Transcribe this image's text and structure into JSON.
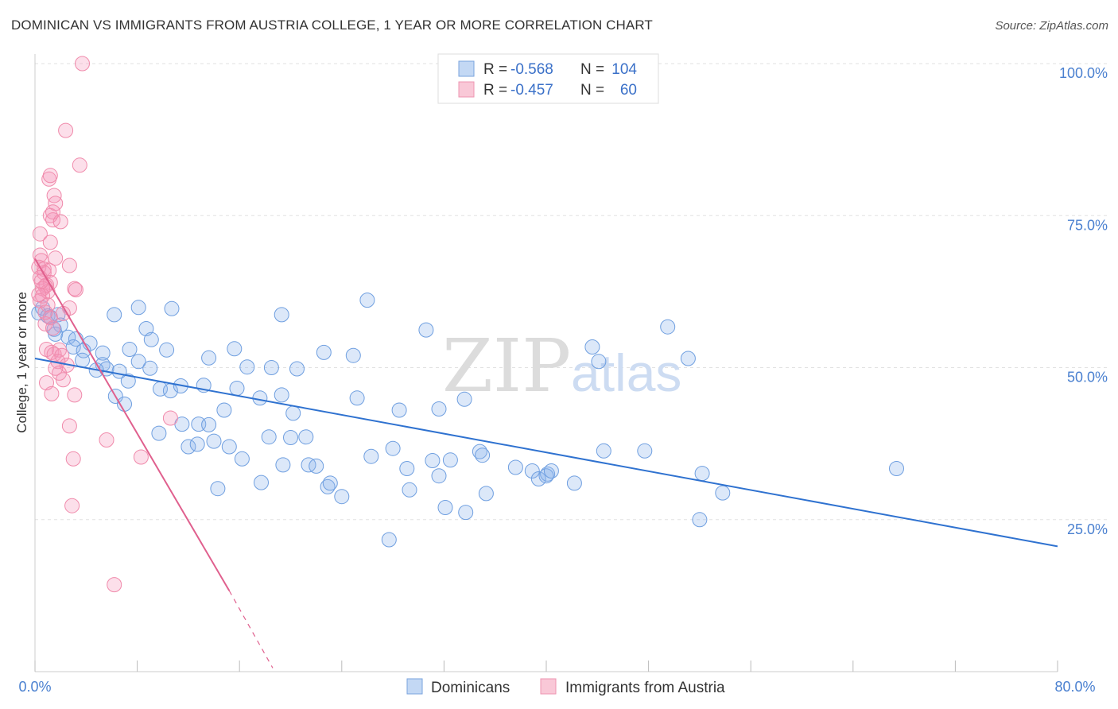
{
  "header": {
    "title": "DOMINICAN VS IMMIGRANTS FROM AUSTRIA COLLEGE, 1 YEAR OR MORE CORRELATION CHART",
    "source": "Source: ZipAtlas.com"
  },
  "watermark": {
    "zip": "ZIP",
    "atlas": "atlas"
  },
  "legend": {
    "rows": [
      {
        "r_label": "R =",
        "r_value": "-0.568",
        "n_label": "N =",
        "n_value": "104"
      },
      {
        "r_label": "R =",
        "r_value": "-0.457",
        "n_label": "N =",
        "n_value": "60"
      }
    ]
  },
  "bottom_legend": {
    "items": [
      "Dominicans",
      "Immigrants from Austria"
    ]
  },
  "chart_data": {
    "type": "scatter",
    "title": "DOMINICAN VS IMMIGRANTS FROM AUSTRIA COLLEGE, 1 YEAR OR MORE CORRELATION CHART",
    "xlabel": "",
    "ylabel": "College, 1 year or more",
    "xlim": [
      0,
      80
    ],
    "ylim": [
      0,
      102
    ],
    "x_tick_labels": [
      "0.0%",
      "80.0%"
    ],
    "y_ticks": [
      25,
      50,
      75,
      100
    ],
    "y_tick_labels": [
      "25.0%",
      "50.0%",
      "75.0%",
      "100.0%"
    ],
    "grid": true,
    "series": [
      {
        "name": "Dominicans",
        "color": "#6f9fe0",
        "line_color": "#2f72d0",
        "trend": {
          "x0": 0,
          "y0": 51.5,
          "x1": 80,
          "y1": 20.6
        },
        "points": [
          [
            0.3,
            59
          ],
          [
            0.6,
            59.8
          ],
          [
            1.0,
            58.5
          ],
          [
            1.2,
            58.3
          ],
          [
            1.8,
            58.7
          ],
          [
            2.0,
            57
          ],
          [
            1.6,
            55.5
          ],
          [
            2.6,
            55
          ],
          [
            3.2,
            54.7
          ],
          [
            3.0,
            53.4
          ],
          [
            4.3,
            54
          ],
          [
            3.8,
            52.8
          ],
          [
            5.3,
            52.4
          ],
          [
            3.7,
            51.2
          ],
          [
            5.3,
            50.5
          ],
          [
            5.6,
            49.8
          ],
          [
            4.8,
            49.6
          ],
          [
            6.6,
            49.4
          ],
          [
            7.4,
            53
          ],
          [
            9.0,
            49.9
          ],
          [
            7.3,
            47.8
          ],
          [
            9.8,
            46.5
          ],
          [
            6.3,
            45.3
          ],
          [
            7.0,
            44
          ],
          [
            6.2,
            58.7
          ],
          [
            8.1,
            59.9
          ],
          [
            10.7,
            59.7
          ],
          [
            8.7,
            56.4
          ],
          [
            9.1,
            54.6
          ],
          [
            10.3,
            52.9
          ],
          [
            8.1,
            51
          ],
          [
            10.6,
            46.2
          ],
          [
            11.4,
            47
          ],
          [
            13.6,
            51.6
          ],
          [
            13.2,
            47.1
          ],
          [
            15.6,
            53.1
          ],
          [
            15.8,
            46.6
          ],
          [
            16.6,
            50.1
          ],
          [
            17.6,
            45
          ],
          [
            18.5,
            50
          ],
          [
            19.3,
            45.5
          ],
          [
            20.2,
            42.5
          ],
          [
            20.5,
            49.8
          ],
          [
            22.6,
            52.5
          ],
          [
            24.9,
            52
          ],
          [
            25.2,
            45
          ],
          [
            26.0,
            61.1
          ],
          [
            28.5,
            43
          ],
          [
            30.6,
            56.2
          ],
          [
            31.6,
            43.2
          ],
          [
            33.6,
            44.8
          ],
          [
            19.3,
            58.7
          ],
          [
            14.8,
            43
          ],
          [
            9.7,
            39.2
          ],
          [
            11.5,
            40.7
          ],
          [
            12.0,
            37
          ],
          [
            12.7,
            37.4
          ],
          [
            12.8,
            40.7
          ],
          [
            13.6,
            40.6
          ],
          [
            14.0,
            37.9
          ],
          [
            15.2,
            37
          ],
          [
            16.2,
            35
          ],
          [
            18.3,
            38.6
          ],
          [
            19.4,
            34
          ],
          [
            17.7,
            31.1
          ],
          [
            20.0,
            38.5
          ],
          [
            21.2,
            38.6
          ],
          [
            21.4,
            34
          ],
          [
            22.0,
            33.8
          ],
          [
            14.3,
            30.1
          ],
          [
            22.9,
            30.4
          ],
          [
            23.1,
            31
          ],
          [
            24.0,
            28.8
          ],
          [
            26.3,
            35.4
          ],
          [
            28.0,
            36.7
          ],
          [
            29.1,
            33.4
          ],
          [
            29.3,
            29.9
          ],
          [
            31.1,
            34.7
          ],
          [
            31.6,
            32.2
          ],
          [
            32.1,
            27
          ],
          [
            32.5,
            34.8
          ],
          [
            33.7,
            26.2
          ],
          [
            34.8,
            36.2
          ],
          [
            35.0,
            35.6
          ],
          [
            35.3,
            29.3
          ],
          [
            37.6,
            33.6
          ],
          [
            38.9,
            33
          ],
          [
            39.4,
            31.7
          ],
          [
            40.1,
            32.5
          ],
          [
            40.0,
            32.2
          ],
          [
            40.4,
            33
          ],
          [
            42.2,
            31
          ],
          [
            43.6,
            53.4
          ],
          [
            44.1,
            51
          ],
          [
            44.5,
            36.3
          ],
          [
            47.7,
            36.3
          ],
          [
            49.5,
            56.7
          ],
          [
            51.1,
            51.5
          ],
          [
            52.2,
            32.6
          ],
          [
            52.0,
            25
          ],
          [
            53.8,
            29.4
          ],
          [
            67.4,
            33.4
          ],
          [
            27.7,
            21.7
          ],
          [
            1.5,
            56.3
          ]
        ]
      },
      {
        "name": "Immigrants from Austria",
        "color": "#f08aab",
        "line_color": "#e0608e",
        "trend": {
          "x0": 0,
          "y0": 67.9,
          "x1": 15.2,
          "y1": 13.3,
          "dash_x1": 18.6,
          "dash_y1": 0.6
        },
        "points": [
          [
            3.7,
            100
          ],
          [
            2.4,
            89
          ],
          [
            3.5,
            83.3
          ],
          [
            1.1,
            81
          ],
          [
            1.2,
            81.6
          ],
          [
            1.5,
            78.3
          ],
          [
            1.6,
            77
          ],
          [
            1.2,
            75
          ],
          [
            1.4,
            74.3
          ],
          [
            1.4,
            75.6
          ],
          [
            2.0,
            74
          ],
          [
            0.4,
            72
          ],
          [
            1.2,
            70.6
          ],
          [
            0.4,
            68.5
          ],
          [
            1.6,
            68
          ],
          [
            0.5,
            67.6
          ],
          [
            0.3,
            66.5
          ],
          [
            0.7,
            66.2
          ],
          [
            1.1,
            66
          ],
          [
            2.7,
            66.8
          ],
          [
            0.7,
            65.6
          ],
          [
            0.4,
            64.8
          ],
          [
            1.2,
            64
          ],
          [
            0.9,
            63.6
          ],
          [
            0.8,
            63.4
          ],
          [
            0.6,
            63
          ],
          [
            3.1,
            63
          ],
          [
            3.2,
            62.8
          ],
          [
            1.0,
            62.5
          ],
          [
            0.6,
            61.8
          ],
          [
            0.4,
            61
          ],
          [
            2.7,
            59.8
          ],
          [
            1.2,
            58.2
          ],
          [
            0.8,
            57.2
          ],
          [
            1.4,
            56.5
          ],
          [
            0.9,
            53
          ],
          [
            1.3,
            52.5
          ],
          [
            1.9,
            52.9
          ],
          [
            1.5,
            52.2
          ],
          [
            2.1,
            52
          ],
          [
            1.8,
            51
          ],
          [
            2.5,
            50.4
          ],
          [
            1.9,
            49.1
          ],
          [
            2.2,
            48
          ],
          [
            0.9,
            47.5
          ],
          [
            1.3,
            45.7
          ],
          [
            3.1,
            45.5
          ],
          [
            2.7,
            40.4
          ],
          [
            10.6,
            41.7
          ],
          [
            5.6,
            38.1
          ],
          [
            3.0,
            35
          ],
          [
            8.3,
            35.3
          ],
          [
            2.9,
            27.3
          ],
          [
            6.2,
            14.3
          ],
          [
            0.8,
            59.1
          ],
          [
            2.2,
            58.9
          ],
          [
            0.3,
            62
          ],
          [
            0.5,
            64.2
          ],
          [
            1.0,
            60.3
          ],
          [
            1.6,
            49.9
          ]
        ]
      }
    ]
  }
}
